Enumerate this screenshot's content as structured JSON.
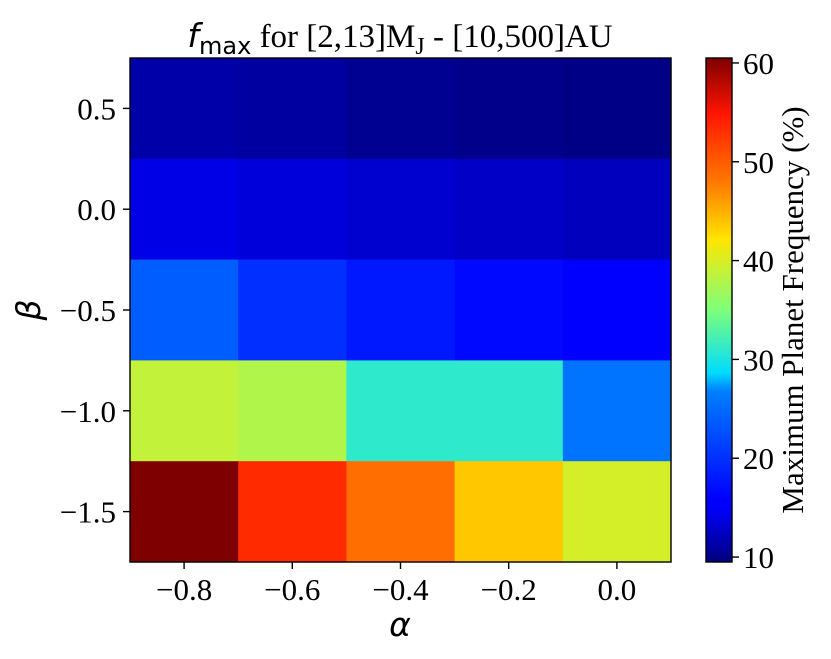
{
  "chart_data": {
    "type": "heatmap",
    "title": {
      "symbol": "f",
      "symbol_sub": "max",
      "text": " for [2,13]M",
      "text_sub": "J",
      "text_end": " - [10,500]AU"
    },
    "xlabel": "α",
    "ylabel": "β",
    "colorbar_label": "Maximum Planet Frequency (%)",
    "colormap": "jet",
    "x_categories": [
      -0.8,
      -0.6,
      -0.4,
      -0.2,
      0.0
    ],
    "y_categories": [
      0.5,
      0.0,
      -0.5,
      -1.0,
      -1.5
    ],
    "x_tick_labels": [
      "−0.8",
      "−0.6",
      "−0.4",
      "−0.2",
      "0.0"
    ],
    "y_tick_labels": [
      "0.5",
      "0.0",
      "−0.5",
      "−1.0",
      "−1.5"
    ],
    "xlim": [
      -0.9,
      0.1
    ],
    "ylim": [
      -1.75,
      0.75
    ],
    "color_range": [
      9.5,
      60.5
    ],
    "colorbar_ticks": [
      10,
      20,
      30,
      40,
      50,
      60
    ],
    "values": [
      [
        11.3,
        11.0,
        10.3,
        10.0,
        9.8
      ],
      [
        14.0,
        13.5,
        13.0,
        12.6,
        12.2
      ],
      [
        23.8,
        19.9,
        17.9,
        16.6,
        15.5
      ],
      [
        38.8,
        37.8,
        31.0,
        31.0,
        25.8
      ],
      [
        60.5,
        53.4,
        48.7,
        43.8,
        39.8
      ]
    ],
    "grid": false
  }
}
